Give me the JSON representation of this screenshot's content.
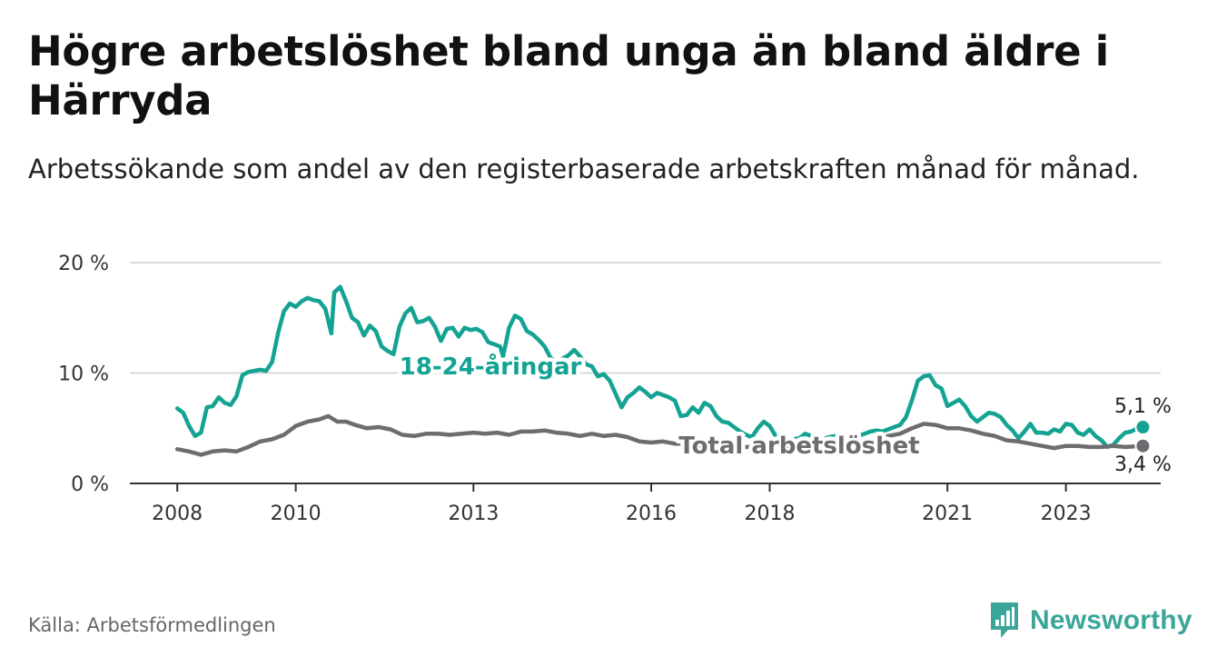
{
  "header": {
    "title": "Högre arbetslöshet bland unga än bland äldre i Härryda",
    "subtitle": "Arbetssökande som andel av den registerbaserade arbetskraften månad för månad."
  },
  "footer": {
    "source": "Källa: Arbetsförmedlingen",
    "brand": "Newsworthy"
  },
  "colors": {
    "youth": "#14a392",
    "total": "#6e6c70",
    "grid": "#d9d9d9",
    "axis": "#333333",
    "brand": "#3aa69a"
  },
  "chart_data": {
    "type": "line",
    "title": "Högre arbetslöshet bland unga än bland äldre i Härryda",
    "xlabel": "",
    "ylabel": "",
    "xlim": [
      2007.2,
      2024.6
    ],
    "ylim": [
      0,
      20
    ],
    "x_ticks": [
      {
        "value": 2008,
        "label": "2008"
      },
      {
        "value": 2010,
        "label": "2010"
      },
      {
        "value": 2013,
        "label": "2013"
      },
      {
        "value": 2016,
        "label": "2016"
      },
      {
        "value": 2018,
        "label": "2018"
      },
      {
        "value": 2021,
        "label": "2021"
      },
      {
        "value": 2023,
        "label": "2023"
      }
    ],
    "y_ticks": [
      {
        "value": 0,
        "label": "0 %"
      },
      {
        "value": 10,
        "label": "10 %"
      },
      {
        "value": 20,
        "label": "20 %"
      }
    ],
    "series": [
      {
        "name": "18-24-åringar",
        "label": "18-24-åringar",
        "end_label": "5,1 %",
        "points": [
          [
            2008.0,
            6.8
          ],
          [
            2008.1,
            6.4
          ],
          [
            2008.2,
            5.2
          ],
          [
            2008.3,
            4.3
          ],
          [
            2008.4,
            4.6
          ],
          [
            2008.5,
            6.9
          ],
          [
            2008.6,
            7.0
          ],
          [
            2008.7,
            7.8
          ],
          [
            2008.8,
            7.3
          ],
          [
            2008.9,
            7.1
          ],
          [
            2009.0,
            7.9
          ],
          [
            2009.1,
            9.8
          ],
          [
            2009.2,
            10.1
          ],
          [
            2009.3,
            10.2
          ],
          [
            2009.4,
            10.3
          ],
          [
            2009.5,
            10.2
          ],
          [
            2009.6,
            11.0
          ],
          [
            2009.7,
            13.6
          ],
          [
            2009.8,
            15.6
          ],
          [
            2009.9,
            16.3
          ],
          [
            2010.0,
            16.0
          ],
          [
            2010.1,
            16.5
          ],
          [
            2010.2,
            16.8
          ],
          [
            2010.3,
            16.6
          ],
          [
            2010.4,
            16.5
          ],
          [
            2010.5,
            15.8
          ],
          [
            2010.6,
            13.6
          ],
          [
            2010.65,
            17.3
          ],
          [
            2010.75,
            17.8
          ],
          [
            2010.85,
            16.5
          ],
          [
            2010.95,
            15.0
          ],
          [
            2011.05,
            14.6
          ],
          [
            2011.15,
            13.4
          ],
          [
            2011.25,
            14.3
          ],
          [
            2011.35,
            13.8
          ],
          [
            2011.45,
            12.4
          ],
          [
            2011.55,
            12.0
          ],
          [
            2011.65,
            11.7
          ],
          [
            2011.75,
            14.2
          ],
          [
            2011.85,
            15.4
          ],
          [
            2011.95,
            15.9
          ],
          [
            2012.05,
            14.6
          ],
          [
            2012.15,
            14.7
          ],
          [
            2012.25,
            15.0
          ],
          [
            2012.35,
            14.2
          ],
          [
            2012.45,
            12.9
          ],
          [
            2012.55,
            14.0
          ],
          [
            2012.65,
            14.1
          ],
          [
            2012.75,
            13.3
          ],
          [
            2012.85,
            14.1
          ],
          [
            2012.95,
            13.9
          ],
          [
            2013.05,
            14.0
          ],
          [
            2013.15,
            13.7
          ],
          [
            2013.25,
            12.8
          ],
          [
            2013.35,
            12.6
          ],
          [
            2013.45,
            12.4
          ],
          [
            2013.5,
            11.5
          ],
          [
            2013.6,
            14.1
          ],
          [
            2013.7,
            15.2
          ],
          [
            2013.8,
            14.9
          ],
          [
            2013.9,
            13.8
          ],
          [
            2014.0,
            13.5
          ],
          [
            2014.1,
            13.0
          ],
          [
            2014.2,
            12.4
          ],
          [
            2014.3,
            11.4
          ],
          [
            2014.4,
            11.0
          ],
          [
            2014.5,
            11.3
          ],
          [
            2014.6,
            11.6
          ],
          [
            2014.7,
            12.1
          ],
          [
            2014.8,
            11.5
          ],
          [
            2014.9,
            10.8
          ],
          [
            2015.0,
            10.6
          ],
          [
            2015.1,
            9.7
          ],
          [
            2015.2,
            9.9
          ],
          [
            2015.3,
            9.3
          ],
          [
            2015.4,
            8.1
          ],
          [
            2015.5,
            6.9
          ],
          [
            2015.6,
            7.8
          ],
          [
            2015.7,
            8.2
          ],
          [
            2015.8,
            8.7
          ],
          [
            2015.9,
            8.3
          ],
          [
            2016.0,
            7.8
          ],
          [
            2016.1,
            8.2
          ],
          [
            2016.2,
            8.0
          ],
          [
            2016.3,
            7.8
          ],
          [
            2016.4,
            7.5
          ],
          [
            2016.5,
            6.1
          ],
          [
            2016.6,
            6.2
          ],
          [
            2016.7,
            6.9
          ],
          [
            2016.8,
            6.4
          ],
          [
            2016.9,
            7.3
          ],
          [
            2017.0,
            7.0
          ],
          [
            2017.1,
            6.1
          ],
          [
            2017.2,
            5.6
          ],
          [
            2017.3,
            5.5
          ],
          [
            2017.4,
            5.1
          ],
          [
            2017.5,
            4.7
          ],
          [
            2017.6,
            4.4
          ],
          [
            2017.7,
            4.2
          ],
          [
            2017.8,
            5.0
          ],
          [
            2017.9,
            5.6
          ],
          [
            2018.0,
            5.2
          ],
          [
            2018.1,
            4.3
          ],
          [
            2018.2,
            4.1
          ],
          [
            2018.3,
            3.9
          ],
          [
            2018.4,
            4.0
          ],
          [
            2018.5,
            4.1
          ],
          [
            2018.6,
            4.5
          ],
          [
            2018.7,
            4.3
          ],
          [
            2018.8,
            4.1
          ],
          [
            2018.9,
            4.0
          ],
          [
            2019.0,
            4.2
          ],
          [
            2019.1,
            4.3
          ],
          [
            2019.2,
            4.1
          ],
          [
            2019.3,
            4.2
          ],
          [
            2019.4,
            4.4
          ],
          [
            2019.5,
            4.3
          ],
          [
            2019.6,
            4.5
          ],
          [
            2019.7,
            4.7
          ],
          [
            2019.8,
            4.8
          ],
          [
            2019.9,
            4.7
          ],
          [
            2020.0,
            4.9
          ],
          [
            2020.1,
            5.1
          ],
          [
            2020.2,
            5.3
          ],
          [
            2020.3,
            6.0
          ],
          [
            2020.4,
            7.5
          ],
          [
            2020.5,
            9.3
          ],
          [
            2020.6,
            9.7
          ],
          [
            2020.7,
            9.8
          ],
          [
            2020.8,
            8.9
          ],
          [
            2020.9,
            8.6
          ],
          [
            2021.0,
            7.0
          ],
          [
            2021.1,
            7.3
          ],
          [
            2021.2,
            7.6
          ],
          [
            2021.3,
            7.0
          ],
          [
            2021.4,
            6.1
          ],
          [
            2021.5,
            5.6
          ],
          [
            2021.6,
            6.0
          ],
          [
            2021.7,
            6.4
          ],
          [
            2021.8,
            6.3
          ],
          [
            2021.9,
            6.0
          ],
          [
            2022.0,
            5.3
          ],
          [
            2022.1,
            4.8
          ],
          [
            2022.2,
            4.1
          ],
          [
            2022.3,
            4.7
          ],
          [
            2022.4,
            5.4
          ],
          [
            2022.5,
            4.6
          ],
          [
            2022.6,
            4.6
          ],
          [
            2022.7,
            4.5
          ],
          [
            2022.8,
            4.9
          ],
          [
            2022.9,
            4.7
          ],
          [
            2023.0,
            5.4
          ],
          [
            2023.1,
            5.3
          ],
          [
            2023.2,
            4.6
          ],
          [
            2023.3,
            4.4
          ],
          [
            2023.4,
            4.9
          ],
          [
            2023.5,
            4.3
          ],
          [
            2023.6,
            3.9
          ],
          [
            2023.7,
            3.3
          ],
          [
            2023.8,
            3.5
          ],
          [
            2023.9,
            4.1
          ],
          [
            2024.0,
            4.6
          ],
          [
            2024.1,
            4.7
          ],
          [
            2024.2,
            5.0
          ],
          [
            2024.3,
            5.1
          ]
        ]
      },
      {
        "name": "Total arbetslöshet",
        "label": "Total arbetslöshet",
        "end_label": "3,4 %",
        "points": [
          [
            2008.0,
            3.1
          ],
          [
            2008.2,
            2.9
          ],
          [
            2008.4,
            2.6
          ],
          [
            2008.6,
            2.9
          ],
          [
            2008.8,
            3.0
          ],
          [
            2009.0,
            2.9
          ],
          [
            2009.2,
            3.3
          ],
          [
            2009.4,
            3.8
          ],
          [
            2009.6,
            4.0
          ],
          [
            2009.8,
            4.4
          ],
          [
            2010.0,
            5.2
          ],
          [
            2010.2,
            5.6
          ],
          [
            2010.4,
            5.8
          ],
          [
            2010.55,
            6.1
          ],
          [
            2010.7,
            5.6
          ],
          [
            2010.85,
            5.6
          ],
          [
            2011.0,
            5.3
          ],
          [
            2011.2,
            5.0
          ],
          [
            2011.4,
            5.1
          ],
          [
            2011.6,
            4.9
          ],
          [
            2011.8,
            4.4
          ],
          [
            2012.0,
            4.3
          ],
          [
            2012.2,
            4.5
          ],
          [
            2012.4,
            4.5
          ],
          [
            2012.6,
            4.4
          ],
          [
            2012.8,
            4.5
          ],
          [
            2013.0,
            4.6
          ],
          [
            2013.2,
            4.5
          ],
          [
            2013.4,
            4.6
          ],
          [
            2013.6,
            4.4
          ],
          [
            2013.8,
            4.7
          ],
          [
            2014.0,
            4.7
          ],
          [
            2014.2,
            4.8
          ],
          [
            2014.4,
            4.6
          ],
          [
            2014.6,
            4.5
          ],
          [
            2014.8,
            4.3
          ],
          [
            2015.0,
            4.5
          ],
          [
            2015.2,
            4.3
          ],
          [
            2015.4,
            4.4
          ],
          [
            2015.6,
            4.2
          ],
          [
            2015.8,
            3.8
          ],
          [
            2016.0,
            3.7
          ],
          [
            2016.2,
            3.8
          ],
          [
            2016.4,
            3.6
          ],
          [
            2016.6,
            3.6
          ],
          [
            2016.8,
            3.4
          ],
          [
            2017.0,
            3.2
          ],
          [
            2017.2,
            3.3
          ],
          [
            2017.4,
            3.3
          ],
          [
            2017.6,
            3.3
          ],
          [
            2017.8,
            3.3
          ],
          [
            2018.0,
            3.4
          ],
          [
            2018.2,
            3.3
          ],
          [
            2018.4,
            3.4
          ],
          [
            2018.6,
            3.5
          ],
          [
            2018.8,
            3.4
          ],
          [
            2019.0,
            3.5
          ],
          [
            2019.2,
            3.6
          ],
          [
            2019.4,
            3.7
          ],
          [
            2019.6,
            3.8
          ],
          [
            2019.8,
            4.0
          ],
          [
            2020.0,
            4.3
          ],
          [
            2020.2,
            4.5
          ],
          [
            2020.4,
            5.0
          ],
          [
            2020.6,
            5.4
          ],
          [
            2020.8,
            5.3
          ],
          [
            2021.0,
            5.0
          ],
          [
            2021.2,
            5.0
          ],
          [
            2021.4,
            4.8
          ],
          [
            2021.6,
            4.5
          ],
          [
            2021.8,
            4.3
          ],
          [
            2022.0,
            3.9
          ],
          [
            2022.2,
            3.8
          ],
          [
            2022.4,
            3.6
          ],
          [
            2022.6,
            3.4
          ],
          [
            2022.8,
            3.2
          ],
          [
            2023.0,
            3.4
          ],
          [
            2023.2,
            3.4
          ],
          [
            2023.4,
            3.3
          ],
          [
            2023.6,
            3.3
          ],
          [
            2023.8,
            3.4
          ],
          [
            2024.0,
            3.3
          ],
          [
            2024.3,
            3.4
          ]
        ]
      }
    ]
  }
}
